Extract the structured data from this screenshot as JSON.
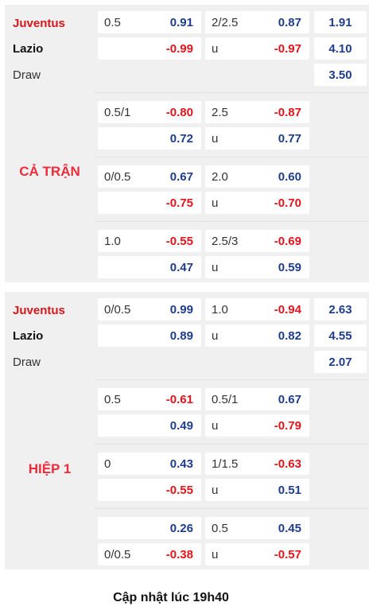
{
  "full_match": {
    "label": "CẢ TRẬN",
    "home": "Juventus",
    "away": "Lazio",
    "draw": "Draw",
    "main": {
      "hdp_line": "0.5",
      "hdp_home": "0.91",
      "hdp_away": "-0.99",
      "ou_line": "2/2.5",
      "ou_over": "0.87",
      "ou_under_label": "u",
      "ou_under": "-0.97",
      "x12_home": "1.91",
      "x12_away": "4.10",
      "x12_draw": "3.50"
    },
    "alt": [
      {
        "hdp_line_top": "0.5/1",
        "hdp_top": "-0.80",
        "hdp_line_bottom": "",
        "hdp_bottom": "0.72",
        "ou_line": "2.5",
        "ou_over": "-0.87",
        "ou_under_label": "u",
        "ou_under": "0.77"
      },
      {
        "hdp_line_top": "0/0.5",
        "hdp_top": "0.67",
        "hdp_line_bottom": "",
        "hdp_bottom": "-0.75",
        "ou_line": "2.0",
        "ou_over": "0.60",
        "ou_under_label": "u",
        "ou_under": "-0.70"
      },
      {
        "hdp_line_top": "1.0",
        "hdp_top": "-0.55",
        "hdp_line_bottom": "",
        "hdp_bottom": "0.47",
        "ou_line": "2.5/3",
        "ou_over": "-0.69",
        "ou_under_label": "u",
        "ou_under": "0.59"
      }
    ]
  },
  "first_half": {
    "label": "HIỆP 1",
    "home": "Juventus",
    "away": "Lazio",
    "draw": "Draw",
    "main": {
      "hdp_line": "0/0.5",
      "hdp_home": "0.99",
      "hdp_away": "0.89",
      "ou_line": "1.0",
      "ou_over": "-0.94",
      "ou_under_label": "u",
      "ou_under": "0.82",
      "x12_home": "2.63",
      "x12_away": "4.55",
      "x12_draw": "2.07"
    },
    "alt": [
      {
        "hdp_line_top": "0.5",
        "hdp_top": "-0.61",
        "hdp_line_bottom": "",
        "hdp_bottom": "0.49",
        "ou_line": "0.5/1",
        "ou_over": "0.67",
        "ou_under_label": "u",
        "ou_under": "-0.79"
      },
      {
        "hdp_line_top": "0",
        "hdp_top": "0.43",
        "hdp_line_bottom": "",
        "hdp_bottom": "-0.55",
        "ou_line": "1/1.5",
        "ou_over": "-0.63",
        "ou_under_label": "u",
        "ou_under": "0.51"
      },
      {
        "hdp_line_top": "",
        "hdp_top": "0.26",
        "hdp_line_bottom": "0/0.5",
        "hdp_bottom": "-0.38",
        "ou_line": "0.5",
        "ou_over": "0.45",
        "ou_under_label": "u",
        "ou_under": "-0.57"
      }
    ]
  },
  "footer": {
    "updated": "Cập nhật lúc 19h40"
  },
  "colors": {
    "positive": "#1f3d8f",
    "negative": "#e3141c",
    "home_team": "#d9161b",
    "section_label": "#ee2b3a",
    "panel_bg": "#f0f0f0"
  }
}
